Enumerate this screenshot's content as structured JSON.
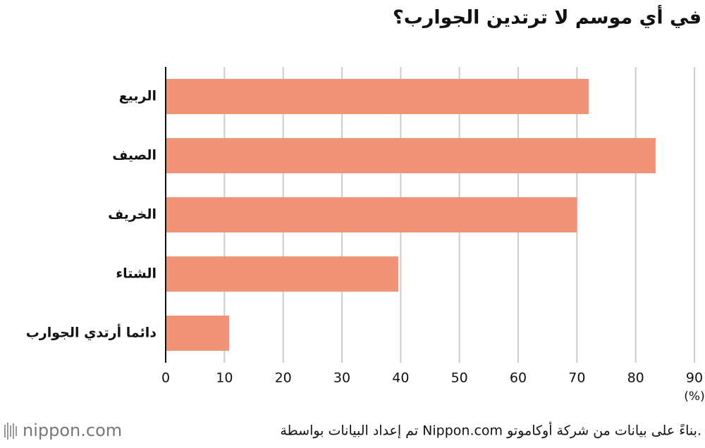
{
  "chart_data": {
    "type": "bar",
    "orientation": "horizontal",
    "title": "في أي موسم لا ترتدين الجوارب؟",
    "categories": [
      "الربيع",
      "الصيف",
      "الخريف",
      "الشتاء",
      "دائما أرتدي الجوارب"
    ],
    "values": [
      72,
      83.4,
      70,
      39.6,
      10.8
    ],
    "color": "#f19376",
    "xlim": [
      0,
      90
    ],
    "xticks": [
      0,
      10,
      20,
      30,
      40,
      50,
      60,
      70,
      80,
      90
    ],
    "grid": true,
    "unit_label": "(%)",
    "source": "تم إعداد البيانات بواسطة Nippon.com بناءً على بيانات من شركة أوكاموتو.",
    "logo": "nippon.com"
  }
}
